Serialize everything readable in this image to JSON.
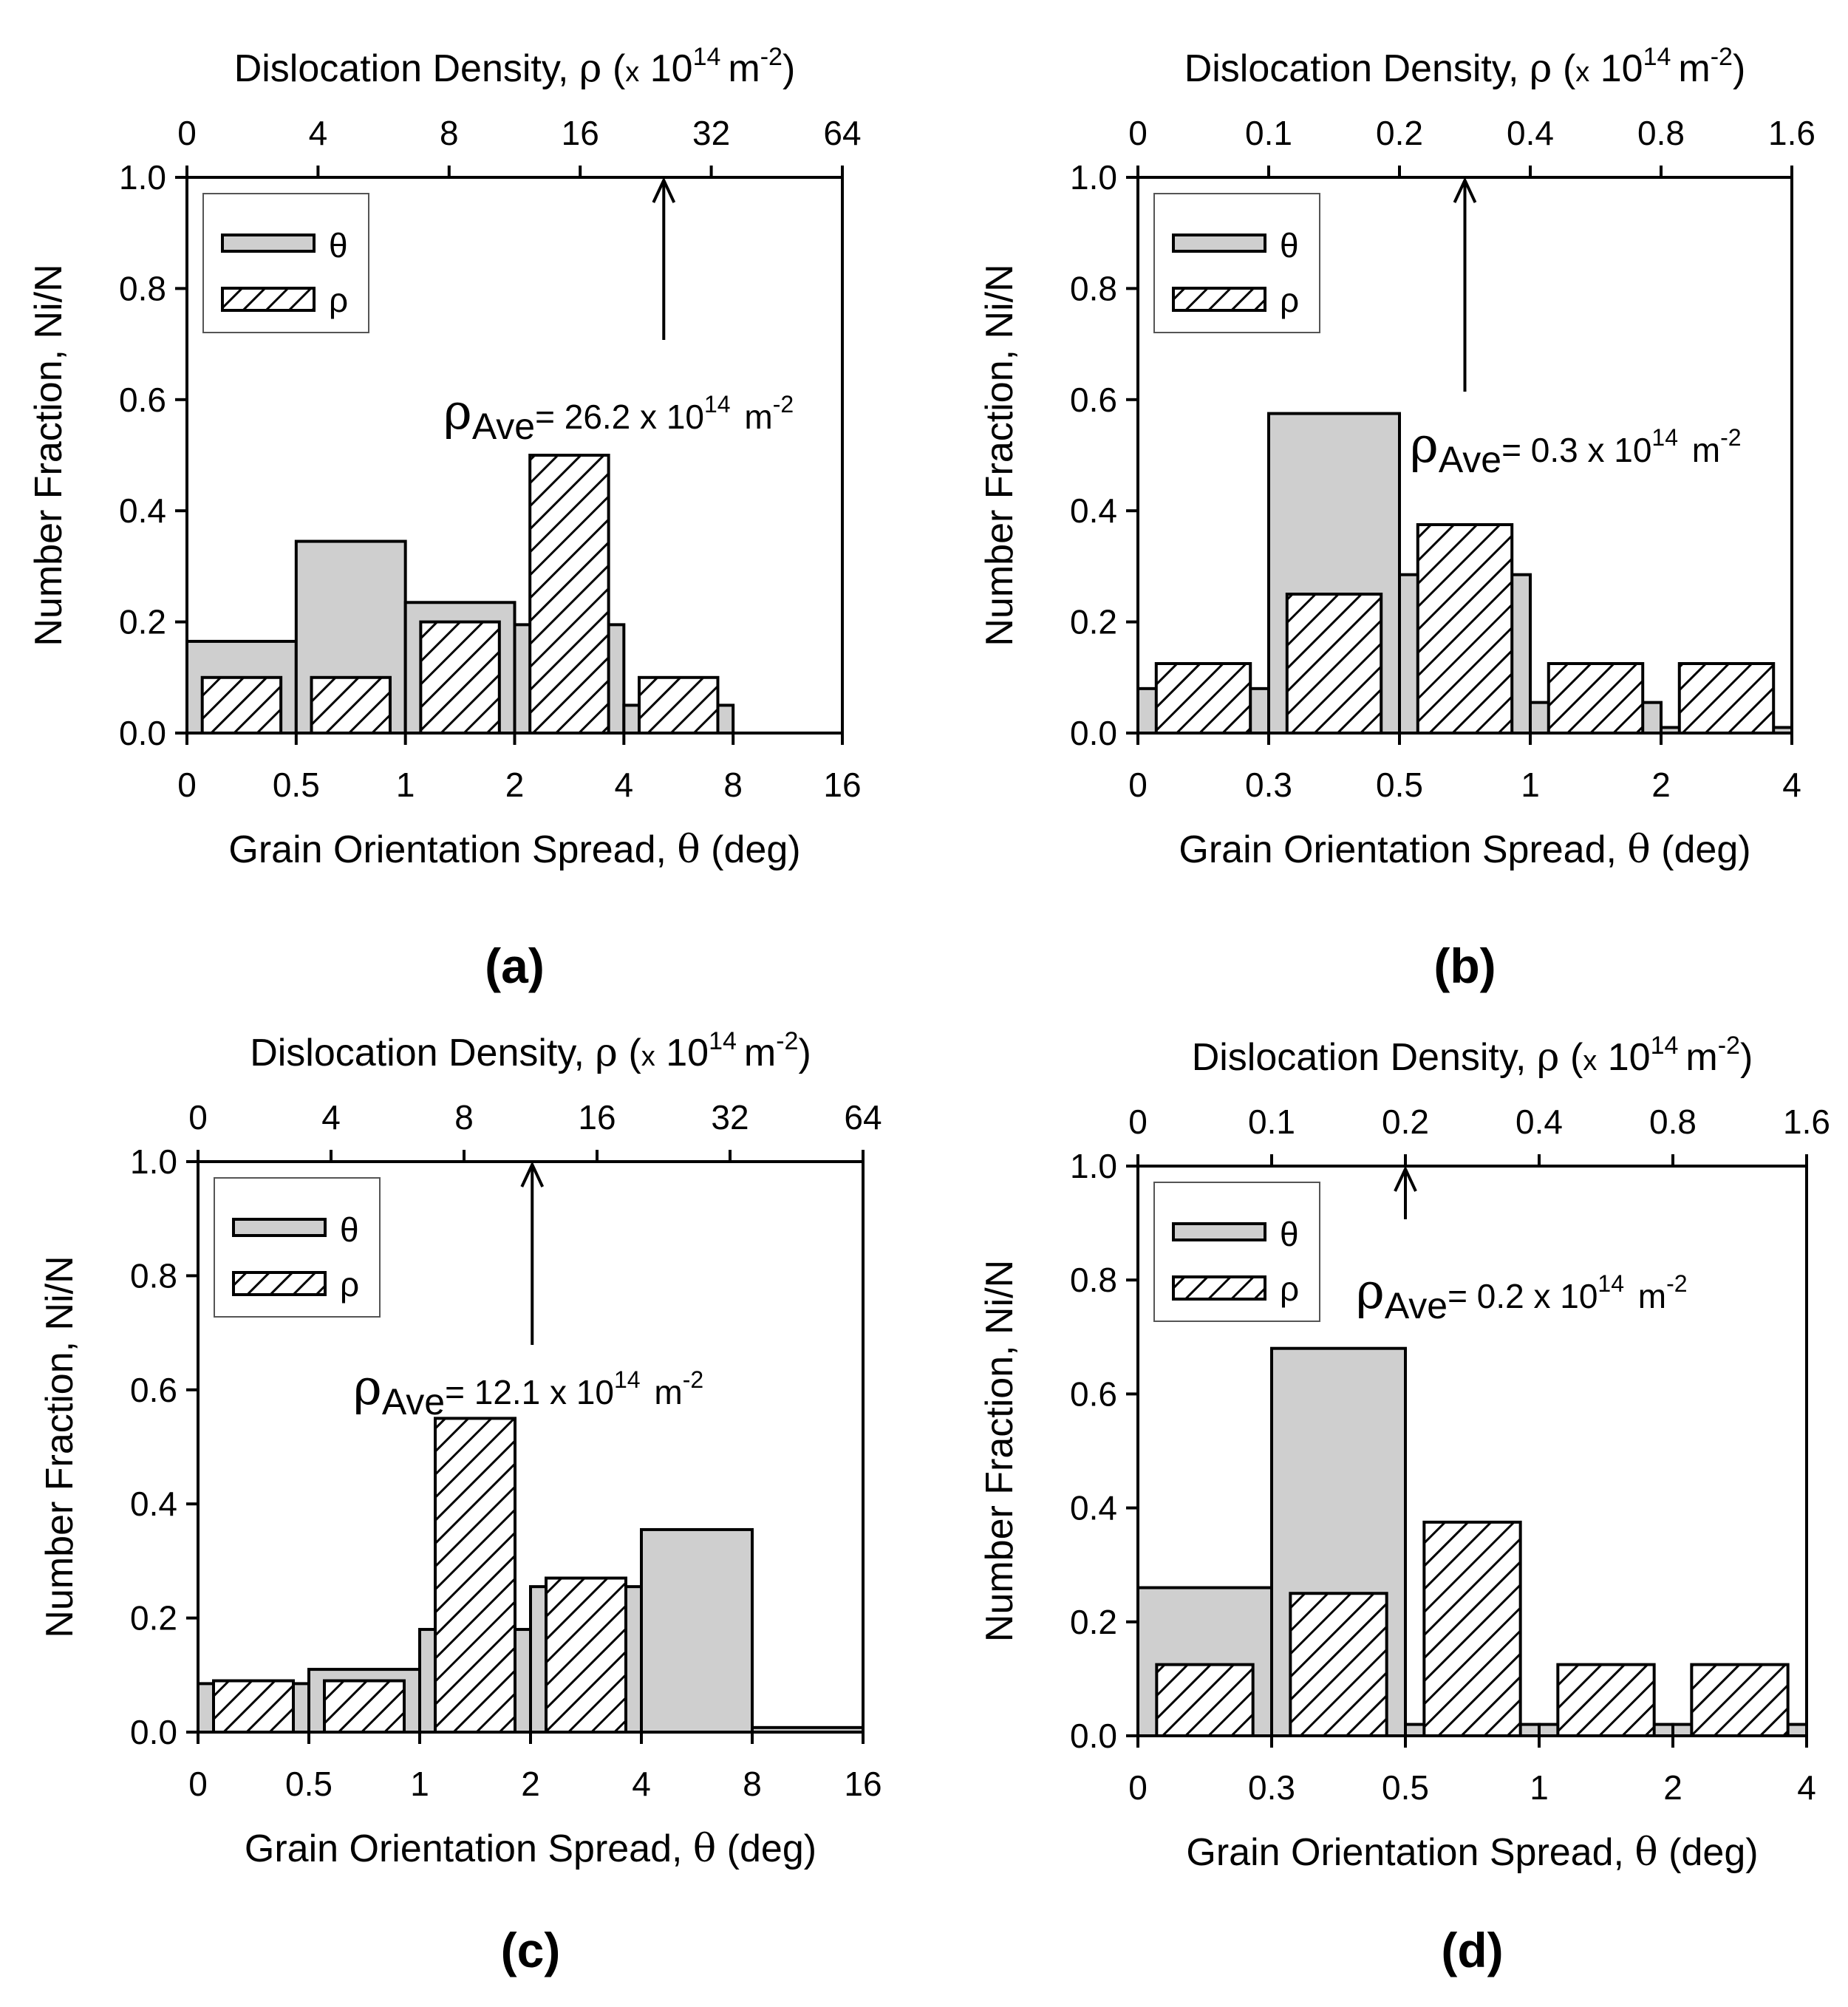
{
  "chart_data": [
    {
      "panel_label": "(a)",
      "type": "bar",
      "xlabel": "Grain Orientation Spread, θ (deg)",
      "x2label": "Dislocation Density, ρ (x 10^14 m^-2)",
      "ylabel": "Number Fraction, Ni/N",
      "xticks": [
        "0",
        "0.5",
        "1",
        "2",
        "4",
        "8",
        "16"
      ],
      "x2ticks": [
        "0",
        "4",
        "8",
        "16",
        "32",
        "64"
      ],
      "yticks": [
        "0.0",
        "0.2",
        "0.4",
        "0.6",
        "0.8",
        "1.0"
      ],
      "ylim": [
        0,
        1
      ],
      "legend": [
        "θ",
        "ρ"
      ],
      "series": [
        {
          "name": "θ",
          "bins": [
            [
              0,
              1,
              0.165
            ],
            [
              1,
              2,
              0.345
            ],
            [
              2,
              3,
              0.235
            ],
            [
              3,
              4,
              0.195
            ],
            [
              4,
              5,
              0.05
            ],
            [
              5,
              6,
              0
            ]
          ]
        },
        {
          "name": "ρ",
          "bins": [
            [
              0,
              1,
              0.1
            ],
            [
              1,
              2,
              0.1
            ],
            [
              2,
              3,
              0.2
            ],
            [
              3,
              4,
              0.5
            ],
            [
              4,
              5,
              0.1
            ]
          ]
        }
      ],
      "annotation": {
        "text": "ρAve= 26.2 x 10^14 m^-2",
        "value": 26.2
      },
      "arrow_value": 26.2
    },
    {
      "panel_label": "(b)",
      "type": "bar",
      "xlabel": "Grain Orientation Spread, θ (deg)",
      "x2label": "Dislocation Density, ρ (x 10^14 m^-2)",
      "ylabel": "Number Fraction, Ni/N",
      "xticks": [
        "0",
        "0.3",
        "0.5",
        "1",
        "2",
        "4"
      ],
      "x2ticks": [
        "0",
        "0.1",
        "0.2",
        "0.4",
        "0.8",
        "1.6"
      ],
      "yticks": [
        "0.0",
        "0.2",
        "0.4",
        "0.6",
        "0.8",
        "1.0"
      ],
      "ylim": [
        0,
        1
      ],
      "legend": [
        "θ",
        "ρ"
      ],
      "series": [
        {
          "name": "θ",
          "bins": [
            [
              0,
              1,
              0.08
            ],
            [
              1,
              2,
              0.575
            ],
            [
              2,
              3,
              0.285
            ],
            [
              3,
              4,
              0.055
            ],
            [
              4,
              5,
              0.01
            ]
          ]
        },
        {
          "name": "ρ",
          "bins": [
            [
              0,
              1,
              0.125
            ],
            [
              1,
              2,
              0.25
            ],
            [
              2,
              3,
              0.375
            ],
            [
              3,
              4,
              0.125
            ],
            [
              4,
              5,
              0.125
            ]
          ]
        }
      ],
      "annotation": {
        "text": "ρAve= 0.3 x 10^14 m^-2",
        "value": 0.3
      },
      "arrow_value": 0.3
    },
    {
      "panel_label": "(c)",
      "type": "bar",
      "xlabel": "Grain Orientation Spread, θ (deg)",
      "x2label": "Dislocation Density, ρ (x 10^14 m^-2)",
      "ylabel": "Number Fraction, Ni/N",
      "xticks": [
        "0",
        "0.5",
        "1",
        "2",
        "4",
        "8",
        "16"
      ],
      "x2ticks": [
        "0",
        "4",
        "8",
        "16",
        "32",
        "64"
      ],
      "yticks": [
        "0.0",
        "0.2",
        "0.4",
        "0.6",
        "0.8",
        "1.0"
      ],
      "ylim": [
        0,
        1
      ],
      "legend": [
        "θ",
        "ρ"
      ],
      "series": [
        {
          "name": "θ",
          "bins": [
            [
              0,
              1,
              0.085
            ],
            [
              1,
              2,
              0.11
            ],
            [
              2,
              3,
              0.18
            ],
            [
              3,
              4,
              0.255
            ],
            [
              4,
              5,
              0.355
            ],
            [
              5,
              6,
              0.008
            ]
          ]
        },
        {
          "name": "ρ",
          "bins": [
            [
              0,
              1,
              0.09
            ],
            [
              1,
              2,
              0.09
            ],
            [
              2,
              3,
              0.55
            ],
            [
              3,
              4,
              0.27
            ]
          ]
        }
      ],
      "annotation": {
        "text": "ρAve= 12.1 x 10^14 m^-2",
        "value": 12.1
      },
      "arrow_value": 12.1
    },
    {
      "panel_label": "(d)",
      "type": "bar",
      "xlabel": "Grain Orientation Spread, θ (deg)",
      "x2label": "Dislocation Density, ρ (x 10^14 m^-2)",
      "ylabel": "Number Fraction, Ni/N",
      "xticks": [
        "0",
        "0.3",
        "0.5",
        "1",
        "2",
        "4"
      ],
      "x2ticks": [
        "0",
        "0.1",
        "0.2",
        "0.4",
        "0.8",
        "1.6"
      ],
      "yticks": [
        "0.0",
        "0.2",
        "0.4",
        "0.6",
        "0.8",
        "1.0"
      ],
      "ylim": [
        0,
        1
      ],
      "legend": [
        "θ",
        "ρ"
      ],
      "series": [
        {
          "name": "θ",
          "bins": [
            [
              0,
              1,
              0.26
            ],
            [
              1,
              2,
              0.68
            ],
            [
              2,
              3,
              0.02
            ],
            [
              3,
              4,
              0.02
            ],
            [
              4,
              5,
              0.02
            ]
          ]
        },
        {
          "name": "ρ",
          "bins": [
            [
              0,
              1,
              0.125
            ],
            [
              1,
              2,
              0.25
            ],
            [
              2,
              3,
              0.375
            ],
            [
              3,
              4,
              0.125
            ],
            [
              4,
              5,
              0.125
            ]
          ]
        }
      ],
      "annotation": {
        "text": "ρAve= 0.2 x 10^14 m^-2",
        "value": 0.2
      },
      "arrow_value": 0.2
    }
  ],
  "labels": {
    "ylabel": "Number Fraction, Ni/N",
    "xlabel_main": "Grain Orientation Spread, ",
    "xlabel_theta": "θ",
    "xlabel_unit": " (deg)",
    "x2label_main": "Dislocation Density, ",
    "x2label_rho": "ρ",
    "x2label_x": "x",
    "x2label_ten": "10",
    "x2label_exp": "14",
    "x2label_m": "m",
    "x2label_mexp": "-2",
    "legend_theta": "θ",
    "legend_rho": "ρ",
    "ann_rho": "ρ",
    "ann_sub": "Ave",
    "ann_x10": " x 10",
    "ann_exp": "14",
    "ann_m": " m",
    "ann_mexp": "-2"
  },
  "colors": {
    "theta_fill": "#cfcfcf",
    "rho_fill": "#ffffff",
    "stroke": "#000000"
  }
}
